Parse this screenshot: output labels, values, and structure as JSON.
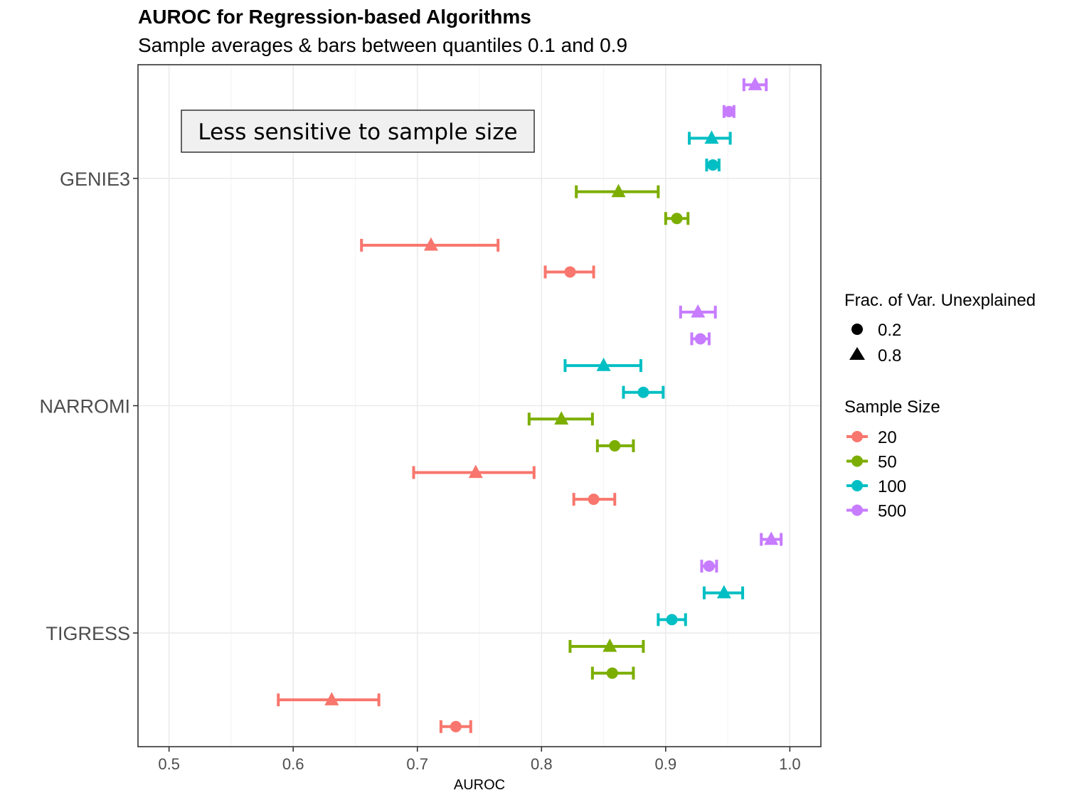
{
  "chart_data": {
    "type": "scatter",
    "title": "AUROC for Regression-based Algorithms",
    "subtitle": "Sample averages & bars between quantiles 0.1 and 0.9",
    "xlabel": "AUROC",
    "ylabel": "",
    "xlim": [
      0.475,
      1.025
    ],
    "x_ticks": [
      0.5,
      0.6,
      0.7,
      0.8,
      0.9,
      1.0
    ],
    "x_tick_labels": [
      "0.5",
      "0.6",
      "0.7",
      "0.8",
      "0.9",
      "1.0"
    ],
    "grid": true,
    "categories": [
      "TIGRESS",
      "NARROMI",
      "GENIE3"
    ],
    "legends": [
      {
        "title": "Frac. of Var. Unexplained",
        "placement": "right",
        "entries": [
          {
            "label": "0.2",
            "shape": "circle"
          },
          {
            "label": "0.8",
            "shape": "triangle"
          }
        ]
      },
      {
        "title": "Sample Size",
        "placement": "right",
        "entries": [
          {
            "label": "20",
            "color": "#F8766D"
          },
          {
            "label": "50",
            "color": "#7CAE00"
          },
          {
            "label": "100",
            "color": "#00BFC4"
          },
          {
            "label": "500",
            "color": "#C77CFF"
          }
        ]
      }
    ],
    "annotation": "Less sensitive to sample size",
    "series": [
      {
        "algorithm": "TIGRESS",
        "sample_size": "20",
        "frac": "0.2",
        "mean": 0.731,
        "lo": 0.719,
        "hi": 0.743
      },
      {
        "algorithm": "TIGRESS",
        "sample_size": "20",
        "frac": "0.8",
        "mean": 0.631,
        "lo": 0.588,
        "hi": 0.669
      },
      {
        "algorithm": "TIGRESS",
        "sample_size": "50",
        "frac": "0.2",
        "mean": 0.857,
        "lo": 0.841,
        "hi": 0.874
      },
      {
        "algorithm": "TIGRESS",
        "sample_size": "50",
        "frac": "0.8",
        "mean": 0.855,
        "lo": 0.823,
        "hi": 0.882
      },
      {
        "algorithm": "TIGRESS",
        "sample_size": "100",
        "frac": "0.2",
        "mean": 0.905,
        "lo": 0.894,
        "hi": 0.916
      },
      {
        "algorithm": "TIGRESS",
        "sample_size": "100",
        "frac": "0.8",
        "mean": 0.947,
        "lo": 0.931,
        "hi": 0.962
      },
      {
        "algorithm": "TIGRESS",
        "sample_size": "500",
        "frac": "0.2",
        "mean": 0.935,
        "lo": 0.929,
        "hi": 0.941
      },
      {
        "algorithm": "TIGRESS",
        "sample_size": "500",
        "frac": "0.8",
        "mean": 0.985,
        "lo": 0.977,
        "hi": 0.993
      },
      {
        "algorithm": "NARROMI",
        "sample_size": "20",
        "frac": "0.2",
        "mean": 0.842,
        "lo": 0.826,
        "hi": 0.859
      },
      {
        "algorithm": "NARROMI",
        "sample_size": "20",
        "frac": "0.8",
        "mean": 0.747,
        "lo": 0.697,
        "hi": 0.794
      },
      {
        "algorithm": "NARROMI",
        "sample_size": "50",
        "frac": "0.2",
        "mean": 0.859,
        "lo": 0.845,
        "hi": 0.874
      },
      {
        "algorithm": "NARROMI",
        "sample_size": "50",
        "frac": "0.8",
        "mean": 0.816,
        "lo": 0.79,
        "hi": 0.841
      },
      {
        "algorithm": "NARROMI",
        "sample_size": "100",
        "frac": "0.2",
        "mean": 0.882,
        "lo": 0.866,
        "hi": 0.898
      },
      {
        "algorithm": "NARROMI",
        "sample_size": "100",
        "frac": "0.8",
        "mean": 0.85,
        "lo": 0.819,
        "hi": 0.88
      },
      {
        "algorithm": "NARROMI",
        "sample_size": "500",
        "frac": "0.2",
        "mean": 0.928,
        "lo": 0.921,
        "hi": 0.935
      },
      {
        "algorithm": "NARROMI",
        "sample_size": "500",
        "frac": "0.8",
        "mean": 0.926,
        "lo": 0.912,
        "hi": 0.94
      },
      {
        "algorithm": "GENIE3",
        "sample_size": "20",
        "frac": "0.2",
        "mean": 0.823,
        "lo": 0.803,
        "hi": 0.842
      },
      {
        "algorithm": "GENIE3",
        "sample_size": "20",
        "frac": "0.8",
        "mean": 0.711,
        "lo": 0.655,
        "hi": 0.765
      },
      {
        "algorithm": "GENIE3",
        "sample_size": "50",
        "frac": "0.2",
        "mean": 0.909,
        "lo": 0.9,
        "hi": 0.918
      },
      {
        "algorithm": "GENIE3",
        "sample_size": "50",
        "frac": "0.8",
        "mean": 0.862,
        "lo": 0.828,
        "hi": 0.894
      },
      {
        "algorithm": "GENIE3",
        "sample_size": "100",
        "frac": "0.2",
        "mean": 0.938,
        "lo": 0.933,
        "hi": 0.943
      },
      {
        "algorithm": "GENIE3",
        "sample_size": "100",
        "frac": "0.8",
        "mean": 0.937,
        "lo": 0.919,
        "hi": 0.952
      },
      {
        "algorithm": "GENIE3",
        "sample_size": "500",
        "frac": "0.2",
        "mean": 0.951,
        "lo": 0.947,
        "hi": 0.955
      },
      {
        "algorithm": "GENIE3",
        "sample_size": "500",
        "frac": "0.8",
        "mean": 0.972,
        "lo": 0.963,
        "hi": 0.981
      }
    ]
  }
}
